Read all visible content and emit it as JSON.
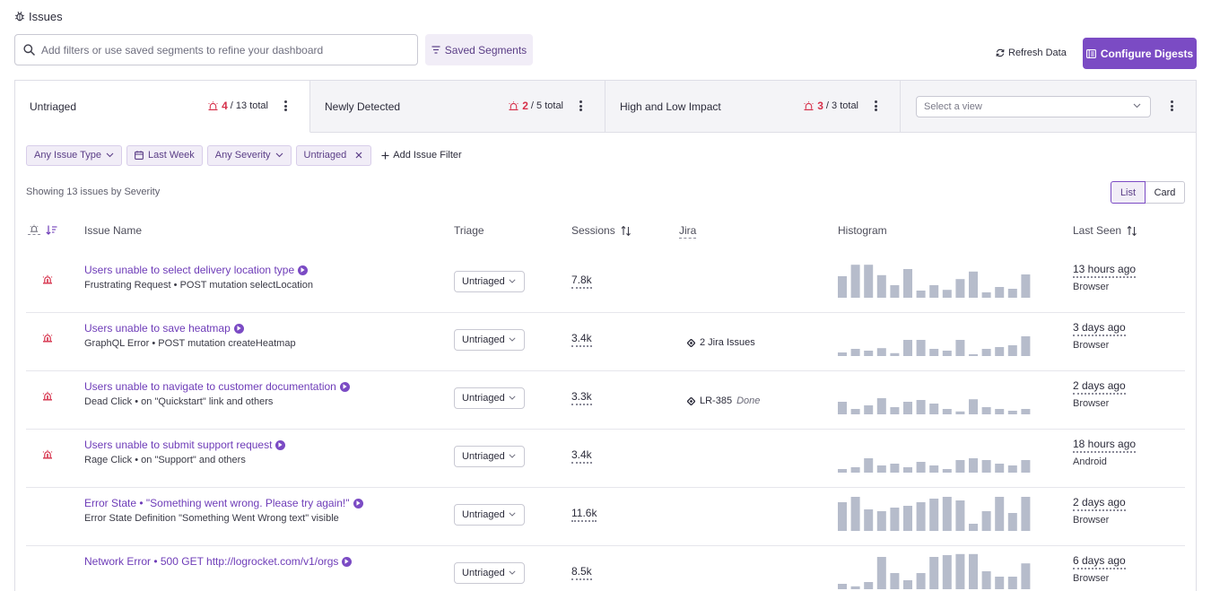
{
  "header": {
    "title": "Issues"
  },
  "toolbar": {
    "filter_placeholder": "Add filters or use saved segments to refine your dashboard",
    "saved_segments": "Saved Segments",
    "refresh": "Refresh Data",
    "configure": "Configure Digests"
  },
  "tabs": [
    {
      "label": "Untriaged",
      "count": "4",
      "total": "/ 13 total"
    },
    {
      "label": "Newly Detected",
      "count": "2",
      "total": "/ 5 total"
    },
    {
      "label": "High and Low Impact",
      "count": "3",
      "total": "/ 3 total"
    }
  ],
  "view_select": {
    "placeholder": "Select a view"
  },
  "filters": {
    "issue_type": "Any Issue Type",
    "date": "Last Week",
    "severity": "Any Severity",
    "status": "Untriaged",
    "add": "Add Issue Filter"
  },
  "summary": "Showing 13 issues by Severity",
  "view_toggle": {
    "list": "List",
    "card": "Card"
  },
  "columns": {
    "issue_name": "Issue Name",
    "triage": "Triage",
    "sessions": "Sessions",
    "jira": "Jira",
    "histogram": "Histogram",
    "last_seen": "Last Seen"
  },
  "issues": [
    {
      "name": "Users unable to select delivery location type",
      "detail": "Frustrating Request • POST mutation selectLocation",
      "severe": true,
      "triage": "Untriaged",
      "sessions": "7.8k",
      "jira_key": "",
      "jira_status": "",
      "last_seen": "13 hours ago",
      "platform": "Browser",
      "histogram": [
        60,
        92,
        92,
        63,
        35,
        80,
        20,
        35,
        22,
        52,
        73,
        15,
        30,
        25,
        65
      ]
    },
    {
      "name": "Users unable to save heatmap",
      "detail": "GraphQL Error • POST mutation createHeatmap",
      "severe": true,
      "triage": "Untriaged",
      "sessions": "3.4k",
      "jira_key": "2 Jira Issues",
      "jira_status": "",
      "last_seen": "3 days ago",
      "platform": "Browser",
      "histogram": [
        10,
        20,
        15,
        22,
        8,
        45,
        45,
        20,
        15,
        45,
        5,
        20,
        25,
        30,
        55
      ]
    },
    {
      "name": "Users unable to navigate to customer documentation",
      "detail": "Dead Click • on \"Quickstart\" link and others",
      "severe": true,
      "triage": "Untriaged",
      "sessions": "3.3k",
      "jira_key": "LR-385",
      "jira_status": "Done",
      "last_seen": "2 days ago",
      "platform": "Browser",
      "histogram": [
        35,
        15,
        25,
        45,
        20,
        35,
        40,
        30,
        15,
        8,
        42,
        20,
        15,
        10,
        15
      ]
    },
    {
      "name": "Users unable to submit support request",
      "detail": "Rage Click • on \"Support\" and others",
      "severe": true,
      "triage": "Untriaged",
      "sessions": "3.4k",
      "jira_key": "",
      "jira_status": "",
      "last_seen": "18 hours ago",
      "platform": "Android",
      "histogram": [
        10,
        15,
        40,
        20,
        25,
        15,
        30,
        20,
        10,
        35,
        40,
        35,
        25,
        20,
        35
      ]
    },
    {
      "name": "Error State • \"Something went wrong. Please try again!\"",
      "detail": "Error State Definition \"Something Went Wrong text\" visible",
      "severe": false,
      "triage": "Untriaged",
      "sessions": "11.6k",
      "jira_key": "",
      "jira_status": "",
      "last_seen": "2 days ago",
      "platform": "Browser",
      "histogram": [
        80,
        95,
        60,
        55,
        65,
        70,
        80,
        90,
        95,
        85,
        20,
        55,
        95,
        50,
        95
      ]
    },
    {
      "name": "Network Error • 500 GET http://logrocket.com/v1/orgs",
      "detail": "",
      "severe": false,
      "triage": "Untriaged",
      "sessions": "8.5k",
      "jira_key": "",
      "jira_status": "",
      "last_seen": "6 days ago",
      "platform": "Browser",
      "histogram": [
        15,
        8,
        20,
        90,
        45,
        25,
        45,
        90,
        95,
        98,
        98,
        50,
        35,
        35,
        72
      ]
    }
  ],
  "colors": {
    "accent": "#7b4bc4",
    "severity": "#d6304a",
    "bar": "#b6bccb"
  }
}
